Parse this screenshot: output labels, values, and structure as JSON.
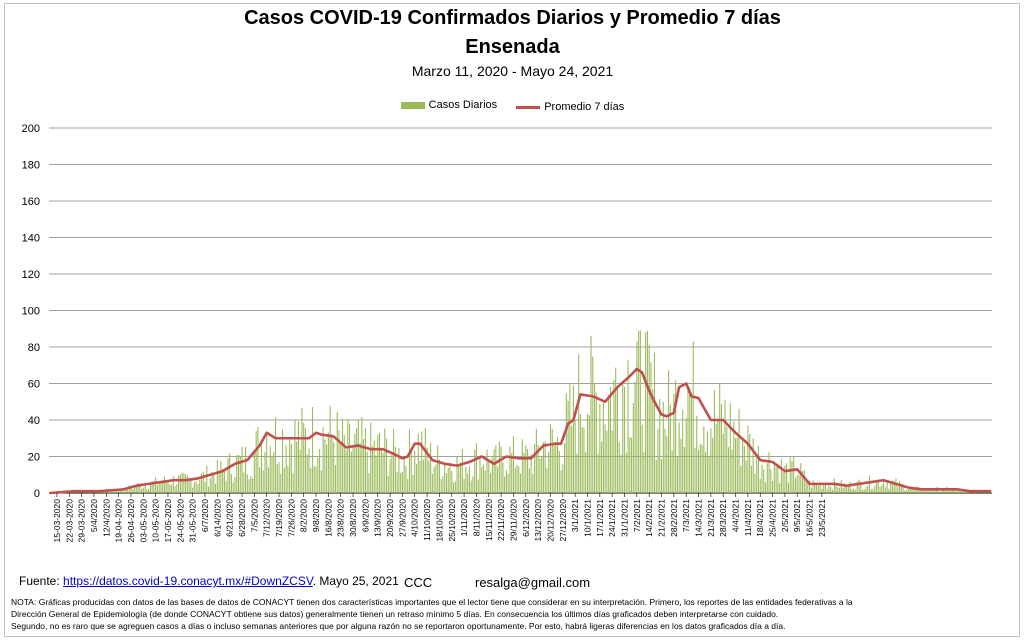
{
  "chart_data": {
    "type": "bar",
    "title": "Casos COVID-19  Confirmados Diarios y Promedio 7 días",
    "title_line2": "Ensenada",
    "subtitle": "Marzo 11, 2020 - Mayo 24, 2021",
    "ylim": [
      0,
      200
    ],
    "yticks": [
      "0",
      "20",
      "40",
      "60",
      "80",
      "100",
      "120",
      "140",
      "160",
      "180",
      "200"
    ],
    "grid": true,
    "legend_position": "top",
    "x_tick_labels": [
      "15-03-2020",
      "22-03-2020",
      "29-03-2020",
      "5/4/2020",
      "12/4/2020",
      "19-04-2020",
      "26-04-2020",
      "03-05-2020",
      "10-05-2020",
      "17-05-2020",
      "24-05-2020",
      "31-05-2020",
      "6/7/2020",
      "6/14/2020",
      "6/21/2020",
      "6/28/2020",
      "7/5/2020",
      "7/12/2020",
      "7/19/2020",
      "7/26/2020",
      "8/2/2020",
      "9/8/2020",
      "16/8/2020",
      "23/8/2020",
      "30/8/2020",
      "6/9/2020",
      "13/9/2020",
      "20/9/2020",
      "27/9/2020",
      "4/10/2020",
      "11/10/2020",
      "18/10/2020",
      "25/10/2020",
      "1/11/2020",
      "8/11/2020",
      "15/11/2020",
      "22/11/2020",
      "29/11/2020",
      "6/12/2020",
      "13/12/2020",
      "20/12/2020",
      "27/12/2020",
      "3/1/2021",
      "10/1/2021",
      "17/1/2021",
      "24/1/2021",
      "31/1/2021",
      "7/2/2021",
      "14/2/2021",
      "21/2/2021",
      "28/2/2021",
      "7/3/2021",
      "14/3/2021",
      "21/3/2021",
      "28/3/2021",
      "4/4/2021",
      "11/4/2021",
      "18/4/2021",
      "25/4/2021",
      "2/5/2021",
      "9/5/2021",
      "16/5/2021",
      "23/5/2021"
    ],
    "avg_anchors": [
      [
        0,
        0
      ],
      [
        7,
        0.5
      ],
      [
        14,
        1
      ],
      [
        21,
        1
      ],
      [
        28,
        1
      ],
      [
        35,
        1.5
      ],
      [
        42,
        2
      ],
      [
        49,
        4
      ],
      [
        56,
        5
      ],
      [
        63,
        6
      ],
      [
        70,
        7
      ],
      [
        77,
        7
      ],
      [
        84,
        8
      ],
      [
        91,
        10
      ],
      [
        98,
        12
      ],
      [
        105,
        16
      ],
      [
        112,
        18
      ],
      [
        119,
        26
      ],
      [
        123,
        33
      ],
      [
        128,
        30
      ],
      [
        133,
        30
      ],
      [
        140,
        30
      ],
      [
        147,
        30
      ],
      [
        151,
        33
      ],
      [
        154,
        32
      ],
      [
        161,
        31
      ],
      [
        168,
        25
      ],
      [
        175,
        26
      ],
      [
        182,
        24
      ],
      [
        189,
        24
      ],
      [
        196,
        21
      ],
      [
        200,
        19
      ],
      [
        203,
        20
      ],
      [
        207,
        27
      ],
      [
        210,
        27
      ],
      [
        217,
        18
      ],
      [
        224,
        16
      ],
      [
        231,
        15
      ],
      [
        238,
        17
      ],
      [
        245,
        20
      ],
      [
        252,
        16
      ],
      [
        259,
        20
      ],
      [
        266,
        19
      ],
      [
        273,
        19
      ],
      [
        280,
        26
      ],
      [
        287,
        27
      ],
      [
        290,
        27
      ],
      [
        294,
        38
      ],
      [
        297,
        40
      ],
      [
        301,
        54
      ],
      [
        308,
        53
      ],
      [
        315,
        50
      ],
      [
        322,
        58
      ],
      [
        329,
        64
      ],
      [
        333,
        68
      ],
      [
        336,
        66
      ],
      [
        340,
        56
      ],
      [
        343,
        50
      ],
      [
        347,
        43
      ],
      [
        350,
        42
      ],
      [
        354,
        44
      ],
      [
        357,
        58
      ],
      [
        361,
        60
      ],
      [
        364,
        53
      ],
      [
        368,
        52
      ],
      [
        375,
        40
      ],
      [
        382,
        40
      ],
      [
        389,
        33
      ],
      [
        396,
        27
      ],
      [
        403,
        18
      ],
      [
        410,
        17
      ],
      [
        417,
        12
      ],
      [
        424,
        13
      ],
      [
        431,
        5
      ],
      [
        438,
        5
      ],
      [
        445,
        5
      ],
      [
        452,
        4
      ],
      [
        459,
        5
      ],
      [
        466,
        6
      ],
      [
        473,
        7
      ],
      [
        480,
        5
      ],
      [
        487,
        3
      ],
      [
        494,
        2
      ],
      [
        501,
        2
      ],
      [
        508,
        2
      ],
      [
        515,
        2
      ],
      [
        522,
        1
      ],
      [
        529,
        1
      ],
      [
        534,
        1
      ]
    ],
    "series": [
      {
        "name": "Casos Diarios",
        "type": "bar",
        "color": "#9bbb59",
        "note": "daily counts follow the 7-day average with day-to-day scatter"
      },
      {
        "name": "Promedio 7 días",
        "type": "line",
        "color": "#c0504d"
      }
    ]
  },
  "footer": {
    "source_label": "Fuente:",
    "source_link": "https://datos.covid-19.conacyt.mx/#DownZCSV",
    "source_date": "Mayo 25, 2021",
    "ccc": "CCC",
    "email": "resalga@gmail.com"
  },
  "note": {
    "line1": "NOTA: Gráficas producidas con datos de las bases de datos de CONACYT tienen dos características importantes que el lector tiene que considerar en su interpretación. Primero, los reportes de las entidades federativas a la",
    "line2": "Dirección General de Epidemiología (de donde CONACYT obtiene sus datos) generalmente tienen un retraso mínimo 5 días. En consecuencia los últimos días graficados deben interpretarse con cuidado.",
    "line3": "Segundo, no es raro que se agreguen casos a días o incluso semanas anteriores que por alguna razón no se reportaron oportunamente. Por esto, habrá ligeras diferencias en los datos graficados día a día."
  }
}
